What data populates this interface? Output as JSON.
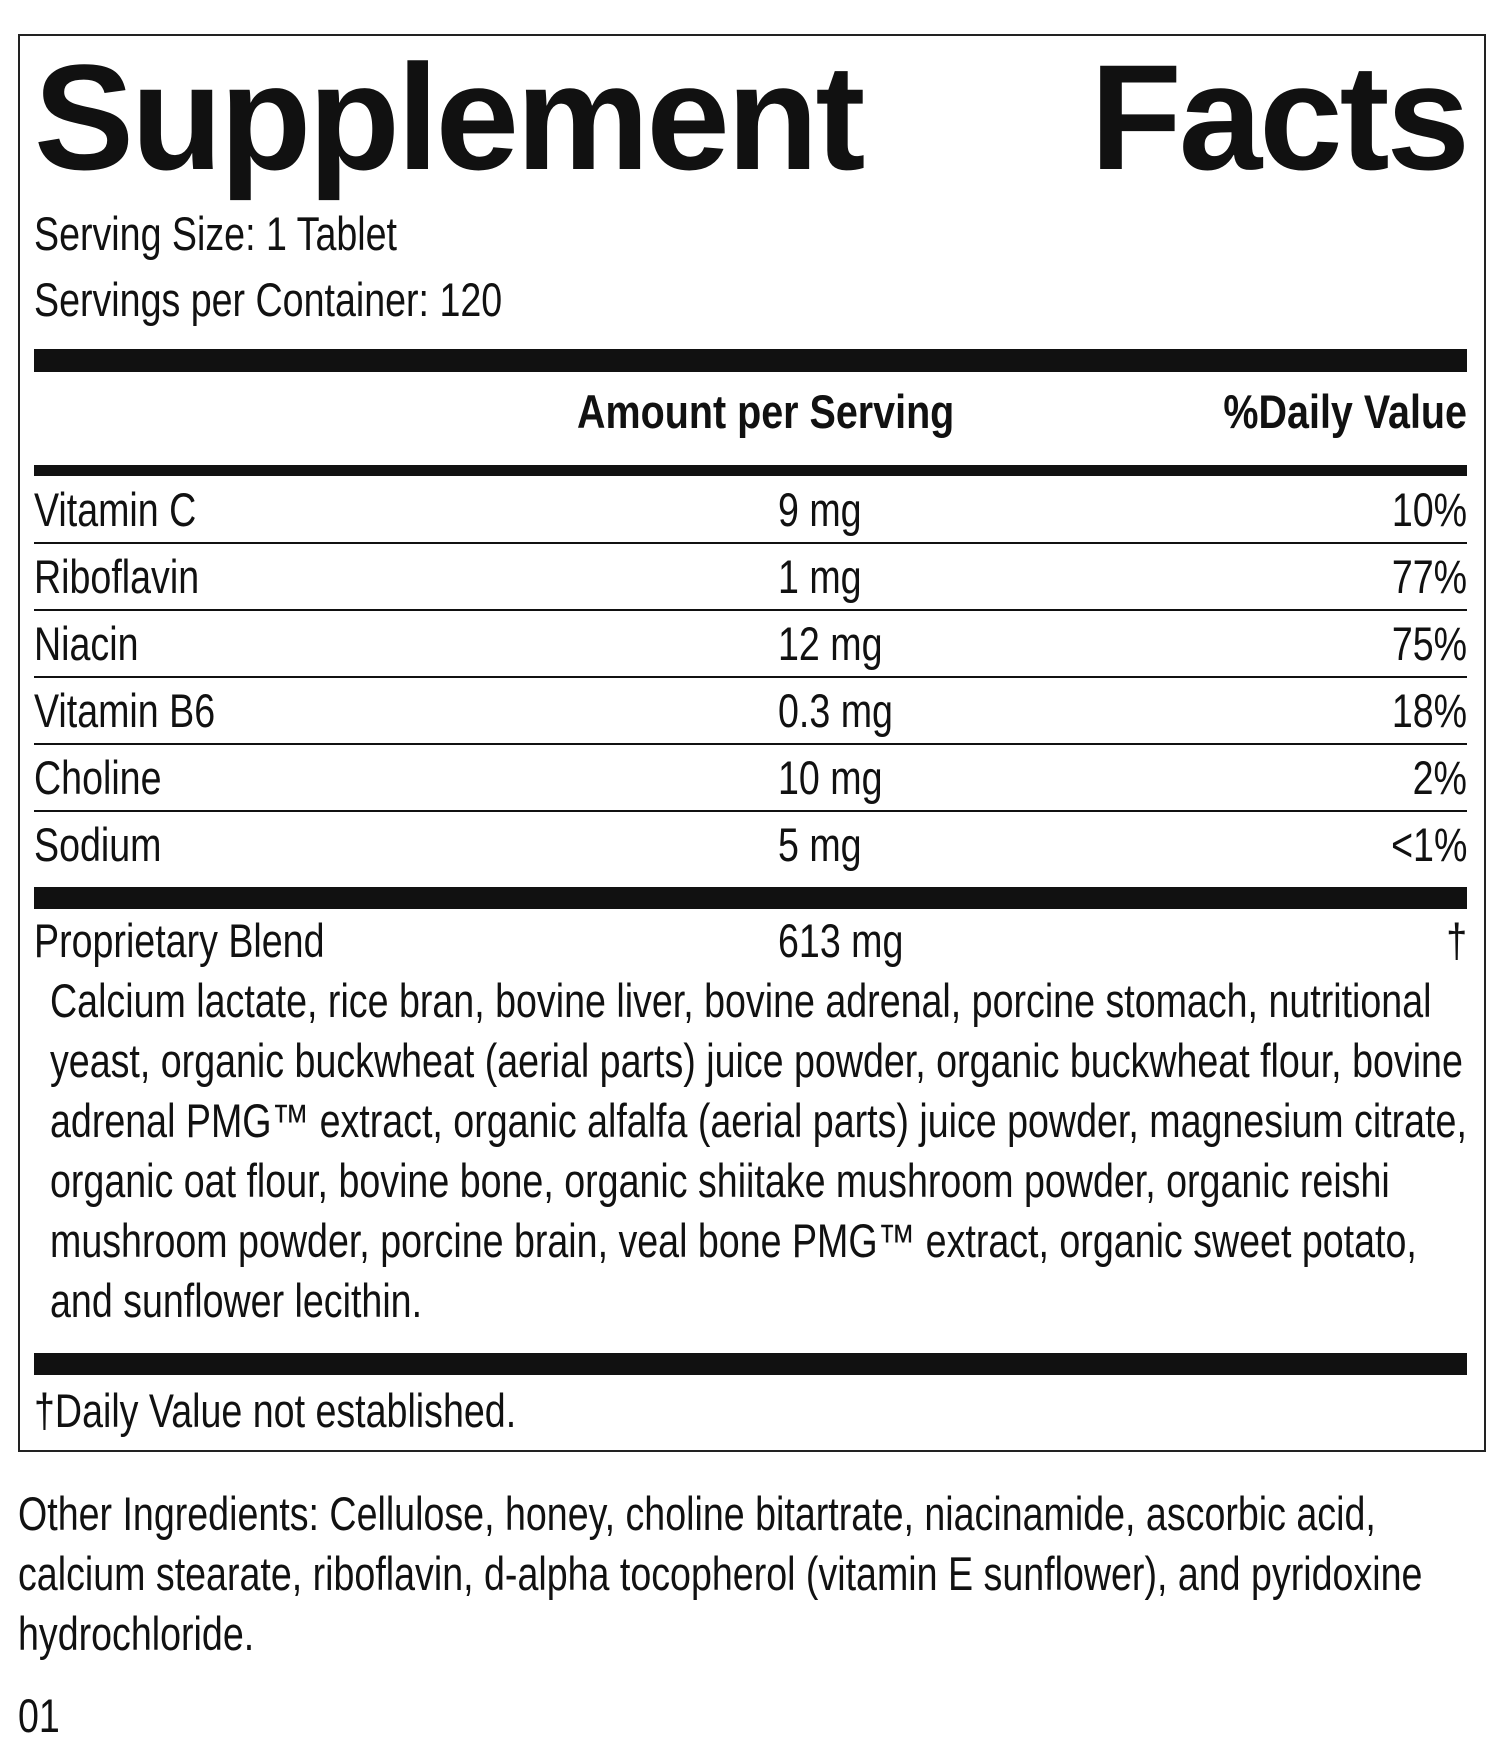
{
  "header": {
    "title": "Supplement Facts",
    "serving_size": "Serving Size: 1 Tablet",
    "servings_per_container": "Servings per Container: 120"
  },
  "table": {
    "columns": [
      "Amount per Serving",
      "%Daily Value"
    ],
    "rows": [
      [
        "Vitamin C",
        "9 mg",
        "10%"
      ],
      [
        "Riboflavin",
        "1 mg",
        "77%"
      ],
      [
        "Niacin",
        "12 mg",
        "75%"
      ],
      [
        "Vitamin B6",
        "0.3 mg",
        "18%"
      ],
      [
        "Choline",
        "10 mg",
        "2%"
      ],
      [
        "Sodium",
        "5 mg",
        "<1%"
      ]
    ],
    "blend": {
      "name": "Proprietary Blend",
      "amount": "613 mg",
      "daily_value": "†",
      "ingredients": "Calcium lactate, rice bran, bovine liver, bovine adrenal, porcine stomach, nutritional yeast, organic buckwheat (aerial parts) juice powder, organic buckwheat flour, bovine adrenal PMG™ extract, organic alfalfa (aerial parts) juice powder, magnesium citrate, organic oat flour, bovine bone, organic shiitake mushroom powder, organic reishi mushroom powder, porcine brain, veal bone PMG™ extract, organic sweet potato, and sunflower lecithin."
    }
  },
  "footnote": "†Daily Value not established.",
  "other_ingredients": "Other Ingredients: Cellulose, honey, choline bitartrate, niacinamide, ascorbic acid, calcium stearate, riboflavin, d-alpha tocopherol (vitamin E sunflower), and pyridoxine hydrochloride.",
  "code": "01"
}
